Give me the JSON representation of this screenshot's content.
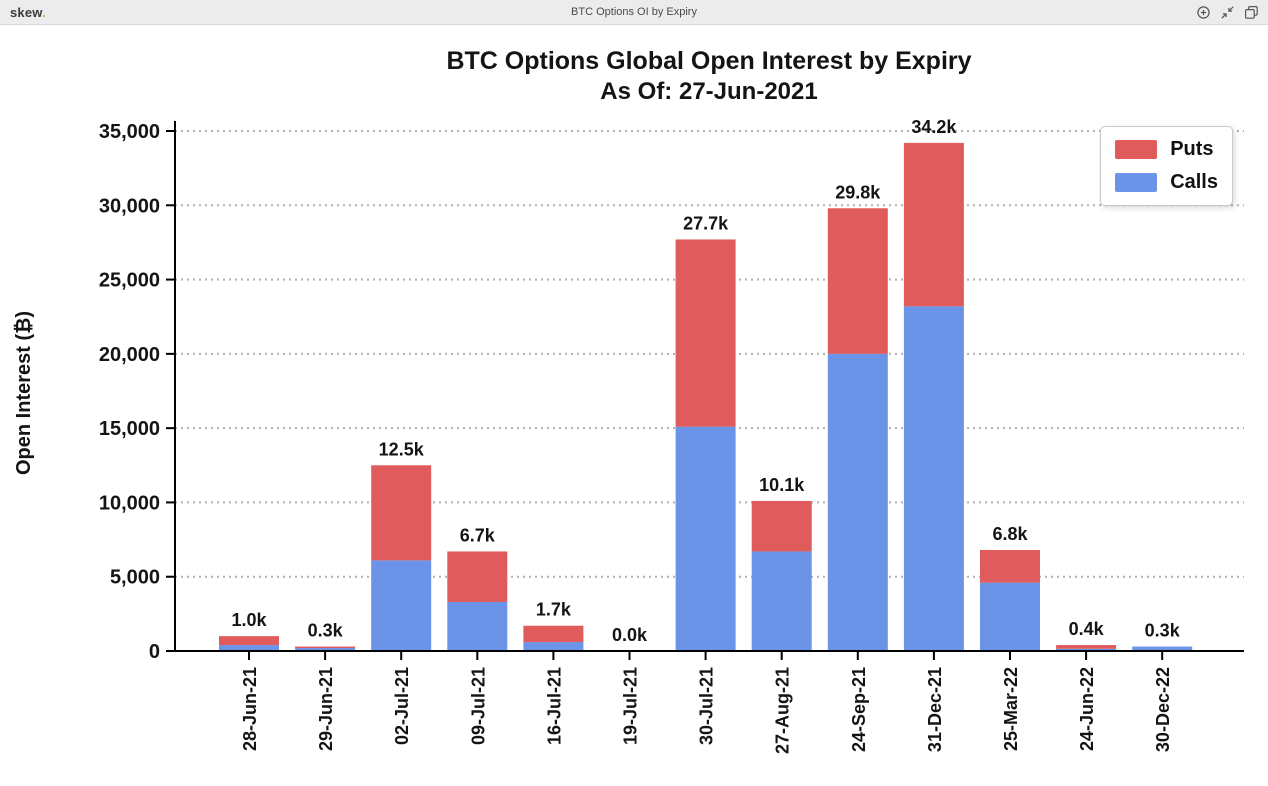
{
  "topbar": {
    "logo_text": "skew",
    "logo_dot": ".",
    "window_title": "BTC Options OI by Expiry",
    "icons": [
      "circle-plus-icon",
      "collapse-icon",
      "duplicate-icon"
    ]
  },
  "chart_data": {
    "type": "bar",
    "stacked": true,
    "title": "BTC Options Global Open Interest by Expiry",
    "subtitle": "As Of: 27-Jun-2021",
    "xlabel": "",
    "ylabel": "Open Interest (₿)",
    "categories": [
      "28-Jun-21",
      "29-Jun-21",
      "02-Jul-21",
      "09-Jul-21",
      "16-Jul-21",
      "19-Jul-21",
      "30-Jul-21",
      "27-Aug-21",
      "24-Sep-21",
      "31-Dec-21",
      "25-Mar-22",
      "24-Jun-22",
      "30-Dec-22"
    ],
    "series": [
      {
        "name": "Calls",
        "color": "#6B93E8",
        "values": [
          400,
          200,
          6100,
          3300,
          600,
          0,
          15100,
          6700,
          20000,
          23200,
          4600,
          150,
          300
        ]
      },
      {
        "name": "Puts",
        "color": "#E05B5B",
        "values": [
          600,
          100,
          6400,
          3400,
          1100,
          0,
          12600,
          3400,
          9800,
          11000,
          2200,
          250,
          0
        ]
      }
    ],
    "bar_total_labels": [
      "1.0k",
      "0.3k",
      "12.5k",
      "6.7k",
      "1.7k",
      "0.0k",
      "27.7k",
      "10.1k",
      "29.8k",
      "34.2k",
      "6.8k",
      "0.4k",
      "0.3k"
    ],
    "ylim": [
      0,
      35000
    ],
    "ytick_interval": 5000,
    "ytick_labels": [
      "0",
      "5,000",
      "10,000",
      "15,000",
      "20,000",
      "25,000",
      "30,000",
      "35,000"
    ],
    "grid": "horizontal-dotted",
    "legend_position": "top-right",
    "legend_order": [
      "Puts",
      "Calls"
    ],
    "colors": {
      "calls_blue": "#6B93E8",
      "puts_red": "#E05B5B",
      "axis": "#000000",
      "grid": "#b0b0b0"
    }
  }
}
